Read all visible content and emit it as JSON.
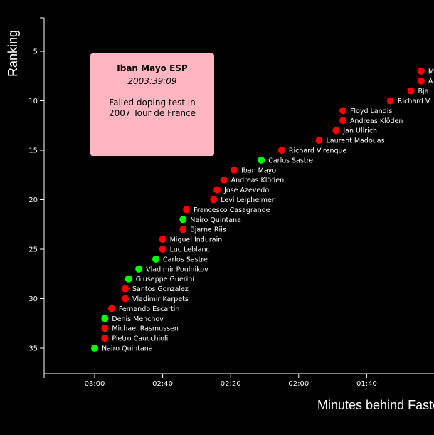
{
  "chart_data": {
    "type": "scatter",
    "xlabel": "Minutes behind Fastest Time",
    "ylabel": "Ranking",
    "x_unit": "seconds behind fastest",
    "x_reversed": true,
    "xlim": [
      0,
      200
    ],
    "ylim": [
      1,
      37
    ],
    "x_ticks": [
      {
        "value": 180,
        "label": "03:00"
      },
      {
        "value": 160,
        "label": "02:40"
      },
      {
        "value": 140,
        "label": "02:20"
      },
      {
        "value": 120,
        "label": "02:00"
      },
      {
        "value": 100,
        "label": "01:40"
      }
    ],
    "y_ticks": [
      5,
      10,
      15,
      20,
      25,
      30,
      35
    ],
    "series": [
      {
        "name": "",
        "color": "#ff0000",
        "points": [
          {
            "x": 84,
            "y": 7,
            "label": "M"
          },
          {
            "x": 84,
            "y": 8,
            "label": "A"
          },
          {
            "x": 87,
            "y": 9,
            "label": "Bja"
          },
          {
            "x": 93,
            "y": 10,
            "label": "Richard V"
          },
          {
            "x": 107,
            "y": 11,
            "label": "Floyd Landis"
          },
          {
            "x": 107,
            "y": 12,
            "label": "Andreas Klöden"
          },
          {
            "x": 109,
            "y": 13,
            "label": "Jan Ullrich"
          },
          {
            "x": 114,
            "y": 14,
            "label": "Laurent Madouas"
          },
          {
            "x": 125,
            "y": 15,
            "label": "Richard Virenque"
          },
          {
            "x": 139,
            "y": 17,
            "label": "Iban Mayo"
          },
          {
            "x": 142,
            "y": 18,
            "label": "Andreas Klöden"
          },
          {
            "x": 144,
            "y": 19,
            "label": "Jose Azevedo"
          },
          {
            "x": 145,
            "y": 20,
            "label": "Levi Leipheimer"
          },
          {
            "x": 153,
            "y": 21,
            "label": "Francesco Casagrande"
          },
          {
            "x": 154,
            "y": 23,
            "label": "Bjarne Riis"
          },
          {
            "x": 160,
            "y": 24,
            "label": "Miguel Indurain"
          },
          {
            "x": 160,
            "y": 25,
            "label": "Luc Leblanc"
          },
          {
            "x": 171,
            "y": 29,
            "label": "Santos Gonzalez"
          },
          {
            "x": 171,
            "y": 30,
            "label": "Vladimir Karpets"
          },
          {
            "x": 175,
            "y": 31,
            "label": "Fernando Escartin"
          },
          {
            "x": 177,
            "y": 33,
            "label": "Michael Rasmussen"
          },
          {
            "x": 177,
            "y": 34,
            "label": "Pietro Caucchioli"
          }
        ]
      },
      {
        "name": "",
        "color": "#00ff00",
        "points": [
          {
            "x": 131,
            "y": 16,
            "label": "Carlos Sastre"
          },
          {
            "x": 154,
            "y": 22,
            "label": "Nairo Quintana"
          },
          {
            "x": 162,
            "y": 26,
            "label": "Carlos Sastre"
          },
          {
            "x": 167,
            "y": 27,
            "label": "Vladimir Poulnikov"
          },
          {
            "x": 170,
            "y": 28,
            "label": "Giuseppe Guerini"
          },
          {
            "x": 177,
            "y": 32,
            "label": "Denis Menchov"
          },
          {
            "x": 180,
            "y": 35,
            "label": "Nairo Quintana"
          }
        ]
      }
    ],
    "tooltip": {
      "name": "Iban Mayo ESP",
      "time": "2003:39:09",
      "note": "Failed doping test in 2007 Tour de France"
    }
  }
}
